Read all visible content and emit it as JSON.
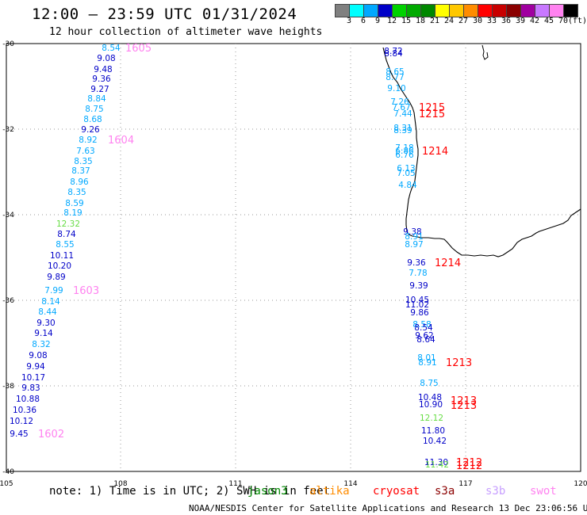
{
  "header": {
    "title": "12:00 – 23:59 UTC 01/31/2024",
    "subtitle": "12 hour collection of altimeter wave heights"
  },
  "colorbar": {
    "unit": "(ft)",
    "ticks": [
      "3",
      "6",
      "9",
      "12",
      "15",
      "18",
      "21",
      "24",
      "27",
      "30",
      "33",
      "36",
      "39",
      "42",
      "45",
      "70"
    ],
    "colors": [
      "#808080",
      "#00ffff",
      "#00a8ff",
      "#0000c8",
      "#00d200",
      "#00aa00",
      "#008800",
      "#ffff00",
      "#ffc800",
      "#ff8c00",
      "#ff0000",
      "#c80000",
      "#8b0000",
      "#a000a0",
      "#c878ff",
      "#ff82f0",
      "#000000"
    ]
  },
  "map": {
    "x_axis": {
      "ticks": [
        "105",
        "108",
        "111",
        "114",
        "117",
        "120"
      ]
    },
    "y_axis": {
      "ticks": [
        "-30",
        "-32",
        "-34",
        "-36",
        "-38",
        "-40"
      ]
    },
    "tracks": [
      {
        "values": [
          "8.54",
          "9.08",
          "9.48",
          "9.36",
          "9.27",
          "8.84",
          "8.75",
          "8.68",
          "9.26",
          "8.92",
          "7.63",
          "8.35",
          "8.37",
          "8.96",
          "8.35",
          "8.59",
          "8.19",
          "12.32",
          "8.74",
          "8.55",
          "10.11",
          "10.20",
          "9.89",
          "7.99",
          "8.14",
          "8.44",
          "9.30",
          "9.14",
          "8.32",
          "9.08",
          "9.94",
          "10.17",
          "9.83",
          "10.88",
          "10.36",
          "10.12",
          "9.45"
        ],
        "colors": [
          "#00a8ff",
          "#0000c8",
          "#0000c8",
          "#0000c8",
          "#0000c8",
          "#00a8ff",
          "#00a8ff",
          "#00a8ff",
          "#0000c8",
          "#00a8ff",
          "#00a8ff",
          "#00a8ff",
          "#00a8ff",
          "#00a8ff",
          "#00a8ff",
          "#00a8ff",
          "#00a8ff",
          "#66dd44",
          "#0000c8",
          "#00a8ff",
          "#0000c8",
          "#0000c8",
          "#0000c8",
          "#00a8ff",
          "#00a8ff",
          "#00a8ff",
          "#0000c8",
          "#0000c8",
          "#00a8ff",
          "#0000c8",
          "#0000c8",
          "#0000c8",
          "#0000c8",
          "#0000c8",
          "#0000c8",
          "#0000c8",
          "#0000c8"
        ],
        "times": [
          {
            "label": "1605",
            "color": "#ff82f0"
          },
          {
            "label": "1604",
            "color": "#ff82f0"
          },
          {
            "label": "1603",
            "color": "#ff82f0"
          },
          {
            "label": "1602",
            "color": "#ff82f0"
          }
        ]
      },
      {
        "values": [
          "8.72",
          "8.84",
          "8.65",
          "8.77",
          "9.10",
          "7.26",
          "7.67",
          "7.44",
          "8.31",
          "8.39",
          "7.18",
          "6.86",
          "6.76",
          "6.13",
          "7.05",
          "4.84",
          "9.38",
          "8.91",
          "8.97",
          "9.36",
          "7.78",
          "9.39",
          "10.45",
          "11.02",
          "9.86",
          "8.58",
          "8.54",
          "9.62",
          "8.64",
          "8.01",
          "8.91",
          "8.75",
          "10.48",
          "10.90",
          "12.12",
          "11.80",
          "10.42",
          "11.30",
          "11.42"
        ],
        "colors": [
          "#0000c8",
          "#0000c8",
          "#00a8ff",
          "#00a8ff",
          "#00a8ff",
          "#00a8ff",
          "#00a8ff",
          "#00a8ff",
          "#00a8ff",
          "#00a8ff",
          "#00a8ff",
          "#00a8ff",
          "#00a8ff",
          "#00a8ff",
          "#00a8ff",
          "#00a8ff",
          "#0000c8",
          "#00a8ff",
          "#00a8ff",
          "#0000c8",
          "#00a8ff",
          "#0000c8",
          "#0000c8",
          "#0000c8",
          "#0000c8",
          "#00a8ff",
          "#0000c8",
          "#0000c8",
          "#0000c8",
          "#00a8ff",
          "#00a8ff",
          "#00a8ff",
          "#0000c8",
          "#0000c8",
          "#66dd44",
          "#0000c8",
          "#0000c8",
          "#0000c8",
          "#66dd44"
        ],
        "times": [
          {
            "label": "1215",
            "color": "#ff0000"
          },
          {
            "label": "1215",
            "color": "#ff0000"
          },
          {
            "label": "1214",
            "color": "#ff0000"
          },
          {
            "label": "1214",
            "color": "#ff0000"
          },
          {
            "label": "1213",
            "color": "#ff0000"
          },
          {
            "label": "1213",
            "color": "#ff0000"
          },
          {
            "label": "1213",
            "color": "#ff0000"
          },
          {
            "label": "1212",
            "color": "#ff0000"
          },
          {
            "label": "1212",
            "color": "#ff0000"
          }
        ]
      }
    ]
  },
  "note": {
    "text": "note: 1) Time is in UTC; 2) SWH is in feet",
    "satellites": [
      {
        "name": "jason3",
        "color": "#008800"
      },
      {
        "name": "altika",
        "color": "#ff8c00"
      },
      {
        "name": "cryosat",
        "color": "#ff0000"
      },
      {
        "name": "s3a",
        "color": "#8b0000"
      },
      {
        "name": "s3b",
        "color": "#c8a0ff"
      },
      {
        "name": "swot",
        "color": "#ff82f0"
      }
    ]
  },
  "footer": {
    "text": "NOAA/NESDIS Center for Satellite Applications and Research    13 Dec 23:06:56 UTC 2024"
  }
}
